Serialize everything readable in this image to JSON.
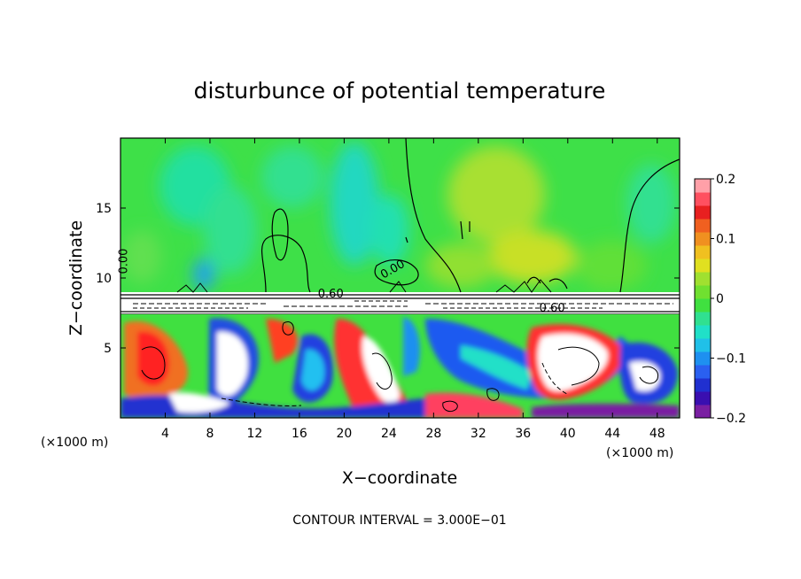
{
  "chart_data": {
    "type": "heatmap",
    "title": "disturbunce of potential temperature",
    "xlabel": "X−coordinate",
    "ylabel": "Z−coordinate",
    "x_unit": "(×1000 m)",
    "x_unit_right": "(×1000 m)",
    "footer": "CONTOUR INTERVAL = 3.000E−01",
    "xlim": [
      0,
      50
    ],
    "ylim": [
      0,
      20
    ],
    "xticks": [
      4,
      8,
      12,
      16,
      20,
      24,
      28,
      32,
      36,
      40,
      44,
      48
    ],
    "yticks": [
      5,
      10,
      15
    ],
    "colorbar": {
      "range": [
        -0.2,
        0.2
      ],
      "tick_labels": [
        "0.2",
        "0.1",
        "0",
        "−0.1",
        "−0.2"
      ],
      "tick_values": [
        0.2,
        0.1,
        0,
        -0.1,
        -0.2
      ],
      "colors": [
        "#7a1fa2",
        "#3a0fb0",
        "#2030d0",
        "#2a60f0",
        "#1e90f0",
        "#20c0e8",
        "#20e0c8",
        "#30e090",
        "#40e040",
        "#70e030",
        "#a0e030",
        "#e0e020",
        "#f0c020",
        "#f09020",
        "#f06020",
        "#e82020",
        "#ff5060",
        "#ffa0a8"
      ]
    },
    "contour_labels": [
      {
        "text": "0.00",
        "x": 0.6,
        "z": 11.2,
        "rotate": -90
      },
      {
        "text": "0.00",
        "x": 24.5,
        "z": 10.4,
        "rotate": -30
      },
      {
        "text": "0.60",
        "x": 18.8,
        "z": 8.6,
        "rotate": 0
      },
      {
        "text": "0.60",
        "x": 38.6,
        "z": 7.6,
        "rotate": 0
      }
    ],
    "inversion_layer_z": [
      7.6,
      9.0
    ]
  }
}
